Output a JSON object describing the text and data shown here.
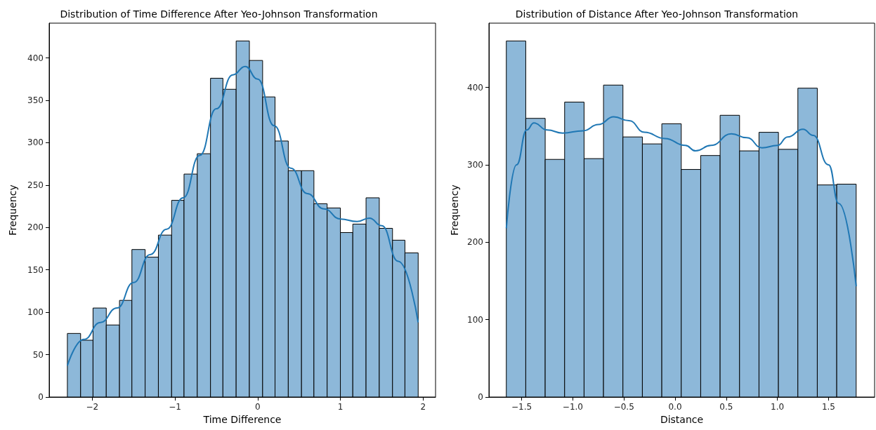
{
  "chart_data": [
    {
      "type": "histogram",
      "title": "Distribution of Time Difference After Yeo-Johnson Transformation",
      "xlabel": "Time Difference",
      "ylabel": "Frequency",
      "bins": [
        -2.3,
        -2.14,
        -1.99,
        -1.83,
        -1.67,
        -1.52,
        -1.36,
        -1.2,
        -1.04,
        -0.89,
        -0.73,
        -0.57,
        -0.42,
        -0.26,
        -0.1,
        0.06,
        0.21,
        0.37,
        0.53,
        0.68,
        0.84,
        1.0,
        1.15,
        1.31,
        1.47,
        1.63,
        1.78,
        1.94
      ],
      "series": [
        {
          "color": "#8db8d9",
          "values": [
            75,
            67,
            105,
            85,
            114,
            174,
            165,
            191,
            232,
            263,
            287,
            376,
            363,
            420,
            397,
            354,
            302,
            267,
            267,
            228,
            223,
            194,
            204,
            235,
            199,
            185,
            170
          ]
        },
        {
          "type": "line",
          "color": "#1f77b4",
          "x": [
            -2.3,
            -2.1,
            -1.9,
            -1.7,
            -1.5,
            -1.3,
            -1.1,
            -0.9,
            -0.7,
            -0.5,
            -0.3,
            -0.15,
            0,
            0.2,
            0.4,
            0.6,
            0.8,
            1.0,
            1.2,
            1.35,
            1.5,
            1.7,
            1.94
          ],
          "values": [
            37,
            68,
            88,
            105,
            135,
            168,
            198,
            235,
            285,
            340,
            380,
            390,
            375,
            320,
            270,
            240,
            222,
            210,
            207,
            211,
            202,
            160,
            88
          ]
        }
      ],
      "xlim": [
        -2.52,
        2.15
      ],
      "xticks": [
        {
          "value": -2,
          "label": "−2"
        },
        {
          "value": -1,
          "label": "−1"
        },
        0,
        1,
        2
      ],
      "ylim": [
        0,
        441
      ],
      "yticks": [
        0,
        50,
        100,
        150,
        200,
        250,
        300,
        350,
        400
      ],
      "grid": false,
      "marker": "none"
    },
    {
      "type": "histogram",
      "title": "Distribution of Distance After Yeo-Johnson Transformation",
      "xlabel": "Distance",
      "ylabel": "Frequency",
      "bins": [
        -1.65,
        -1.46,
        -1.27,
        -1.08,
        -0.89,
        -0.7,
        -0.51,
        -0.32,
        -0.13,
        0.06,
        0.25,
        0.44,
        0.63,
        0.82,
        1.01,
        1.2,
        1.39,
        1.58,
        1.77
      ],
      "series": [
        {
          "color": "#8db8d9",
          "values": [
            460,
            360,
            307,
            381,
            308,
            403,
            336,
            327,
            353,
            294,
            312,
            364,
            318,
            342,
            320,
            399,
            274,
            275
          ]
        },
        {
          "type": "line",
          "color": "#1f77b4",
          "x": [
            -1.65,
            -1.55,
            -1.45,
            -1.38,
            -1.25,
            -1.1,
            -0.9,
            -0.75,
            -0.6,
            -0.45,
            -0.3,
            -0.1,
            0.1,
            0.2,
            0.35,
            0.55,
            0.7,
            0.85,
            1.0,
            1.1,
            1.25,
            1.35,
            1.5,
            1.6,
            1.77
          ],
          "values": [
            218,
            300,
            345,
            354,
            345,
            341,
            344,
            352,
            362,
            357,
            342,
            334,
            325,
            318,
            325,
            340,
            335,
            322,
            325,
            336,
            346,
            338,
            300,
            250,
            143
          ]
        }
      ],
      "xlim": [
        -1.82,
        1.95
      ],
      "xticks": [
        {
          "value": -1.5,
          "label": "−1.5"
        },
        {
          "value": -1,
          "label": "−1.0"
        },
        {
          "value": -0.5,
          "label": "−0.5"
        },
        {
          "value": 0,
          "label": "0.0"
        },
        {
          "value": 0.5,
          "label": "0.5"
        },
        {
          "value": 1,
          "label": "1.0"
        },
        {
          "value": 1.5,
          "label": "1.5"
        }
      ],
      "ylim": [
        0,
        483
      ],
      "yticks": [
        0,
        100,
        200,
        300,
        400
      ],
      "grid": false,
      "marker": "none"
    }
  ]
}
